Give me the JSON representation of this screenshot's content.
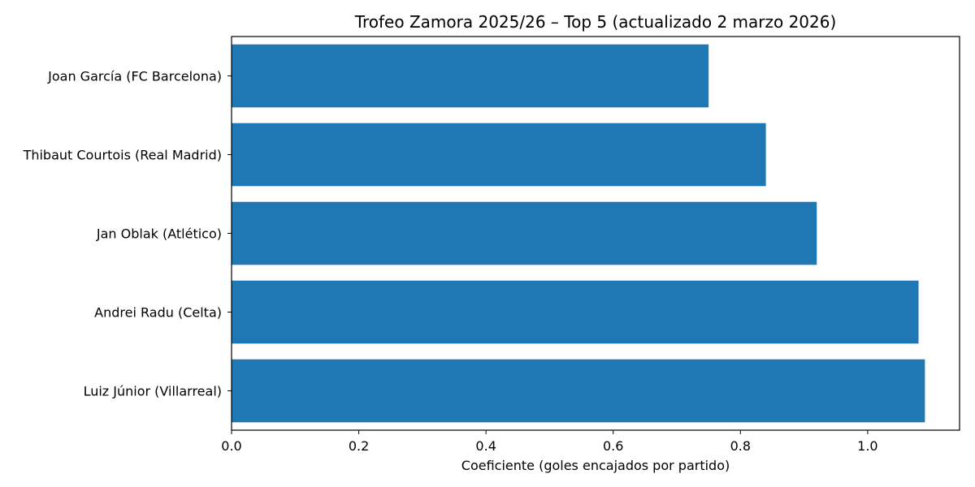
{
  "chart_data": {
    "type": "bar",
    "orientation": "horizontal",
    "title": "Trofeo Zamora 2025/26 – Top 5 (actualizado 2 marzo 2026)",
    "xlabel": "Coeficiente (goles encajados por partido)",
    "ylabel": "",
    "categories": [
      "Joan García (FC Barcelona)",
      "Thibaut Courtois (Real Madrid)",
      "Jan Oblak (Atlético)",
      "Andrei Radu (Celta)",
      "Luiz Júnior (Villarreal)"
    ],
    "values": [
      0.75,
      0.84,
      0.92,
      1.08,
      1.09
    ],
    "xlim": [
      0,
      1.1445
    ],
    "xticks": [
      0.0,
      0.2,
      0.4,
      0.6,
      0.8,
      1.0
    ],
    "xtick_labels": [
      "0.0",
      "0.2",
      "0.4",
      "0.6",
      "0.8",
      "1.0"
    ],
    "bar_color": "#1f77b4",
    "grid": false
  }
}
